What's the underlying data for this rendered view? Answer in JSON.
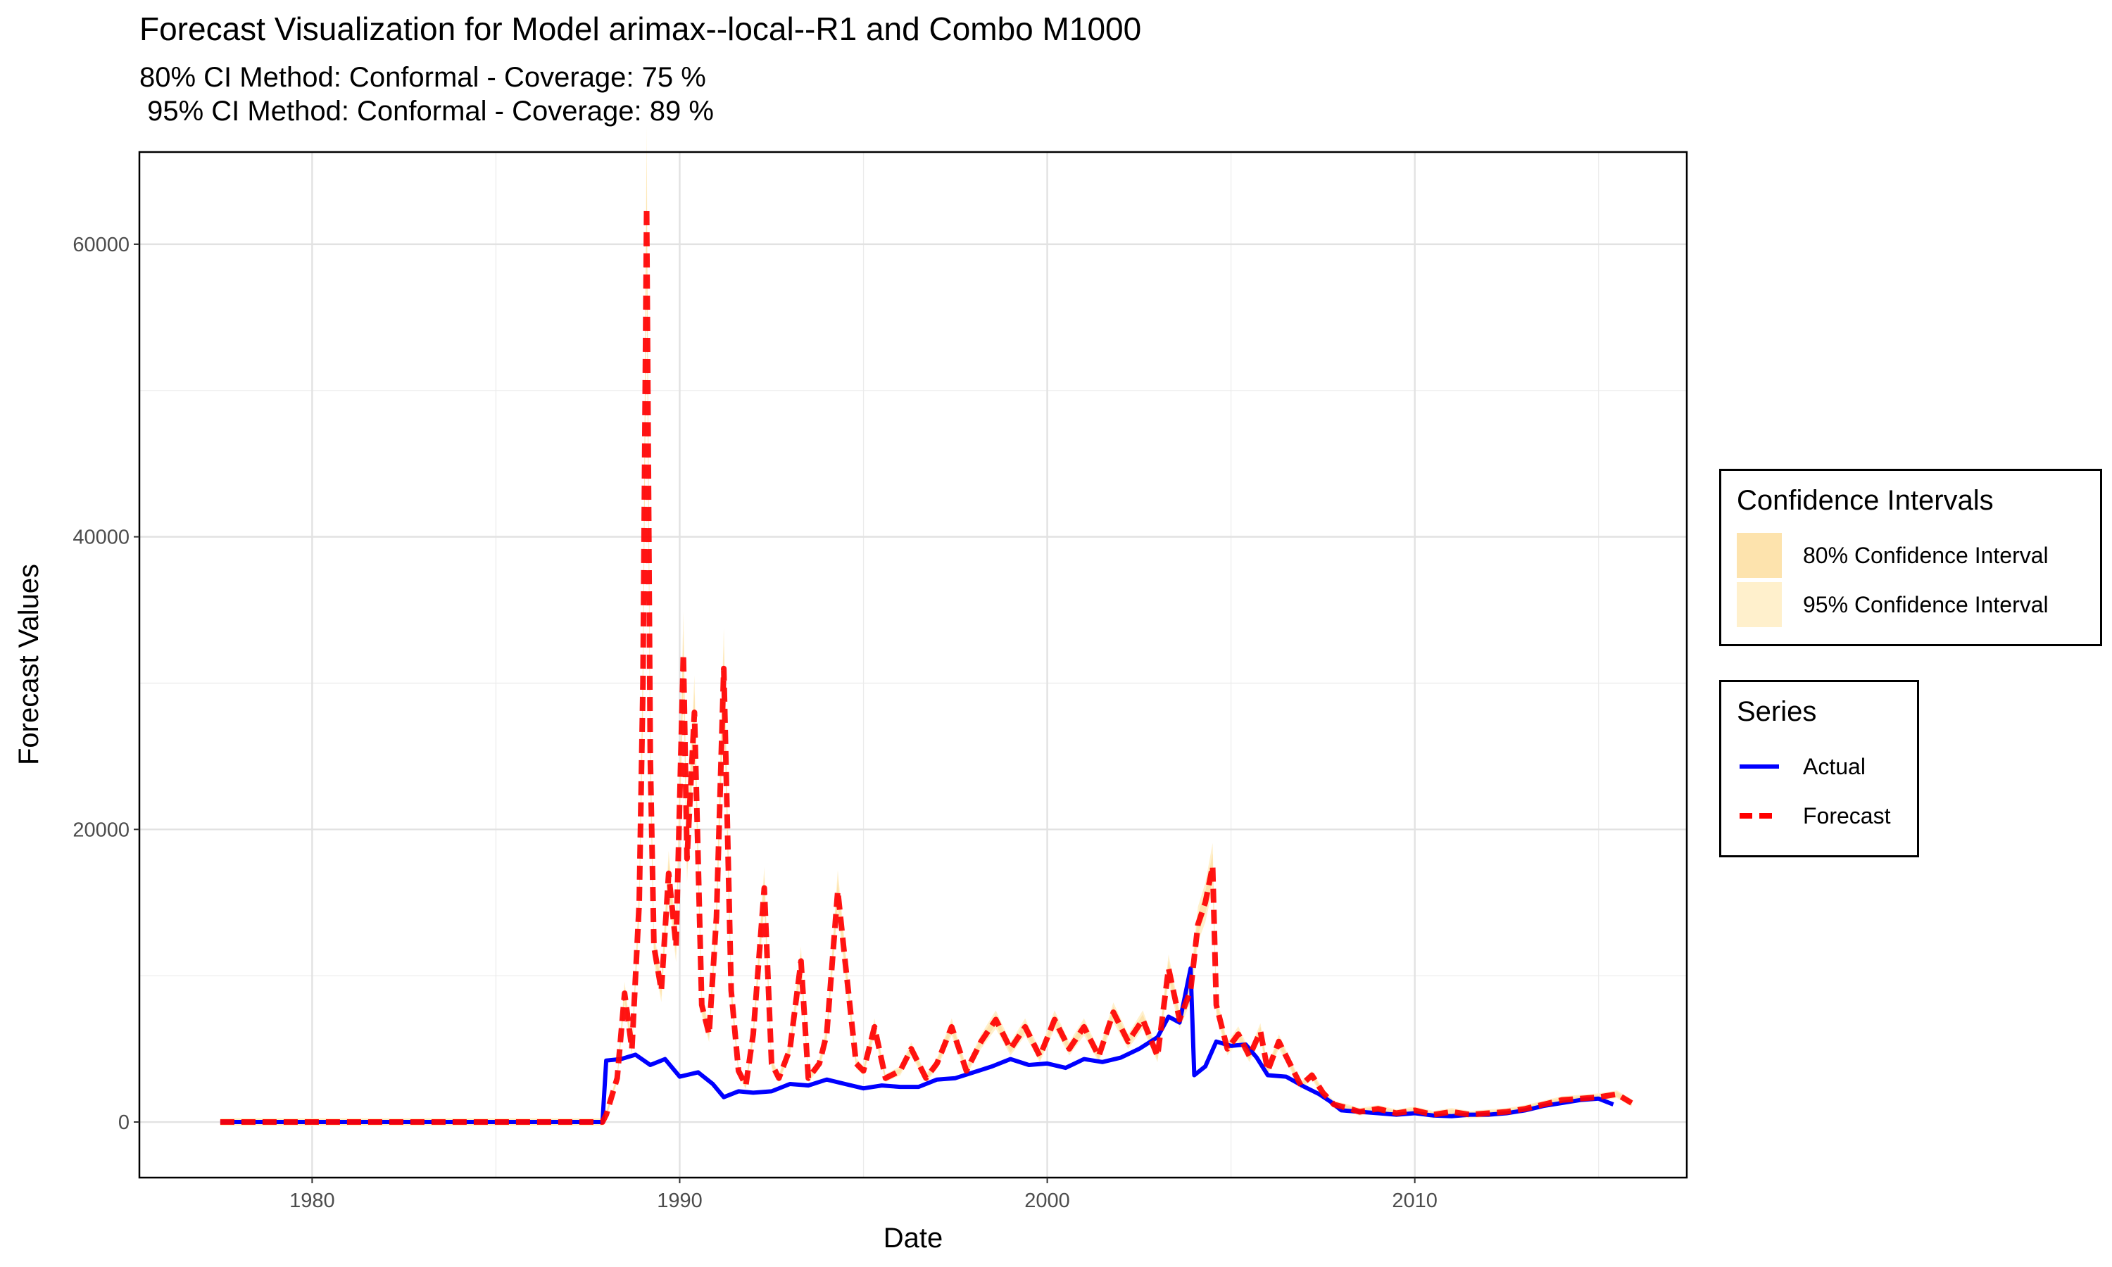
{
  "title": "Forecast Visualization for Model arimax--local--R1 and Combo M1000",
  "subtitle_line1": "80% CI Method: Conformal - Coverage: 75 %",
  "subtitle_line2": " 95% CI Method: Conformal - Coverage: 89 %",
  "legend_ci": {
    "title": "Confidence Intervals",
    "items": [
      {
        "label": "80% Confidence Interval",
        "color": "#fde3ad"
      },
      {
        "label": "95% Confidence Interval",
        "color": "#fff0cc"
      }
    ]
  },
  "legend_series": {
    "title": "Series",
    "items": [
      {
        "label": "Actual",
        "color": "#0000ff",
        "style": "solid"
      },
      {
        "label": "Forecast",
        "color": "#ff0000",
        "style": "dashed"
      }
    ]
  },
  "chart_data": {
    "type": "line",
    "xlabel": "Date",
    "ylabel": "Forecast Values",
    "xlim": [
      1975.3,
      2017.4
    ],
    "ylim": [
      -3800,
      66300
    ],
    "xticks": [
      1980,
      1990,
      2000,
      2010
    ],
    "yticks": [
      0,
      20000,
      40000,
      60000
    ],
    "grid": true,
    "legend_position": "right",
    "series": [
      {
        "name": "Actual",
        "color": "#0000ff",
        "points": [
          [
            1977.5,
            0
          ],
          [
            1987.9,
            0
          ],
          [
            1988.0,
            4200
          ],
          [
            1988.4,
            4300
          ],
          [
            1988.8,
            4600
          ],
          [
            1989.2,
            3900
          ],
          [
            1989.6,
            4300
          ],
          [
            1990.0,
            3100
          ],
          [
            1990.5,
            3400
          ],
          [
            1990.9,
            2600
          ],
          [
            1991.2,
            1700
          ],
          [
            1991.6,
            2100
          ],
          [
            1992.0,
            2000
          ],
          [
            1992.5,
            2100
          ],
          [
            1993.0,
            2600
          ],
          [
            1993.5,
            2500
          ],
          [
            1994.0,
            2900
          ],
          [
            1994.5,
            2600
          ],
          [
            1995.0,
            2300
          ],
          [
            1995.5,
            2500
          ],
          [
            1996.0,
            2400
          ],
          [
            1996.5,
            2400
          ],
          [
            1997.0,
            2900
          ],
          [
            1997.5,
            3000
          ],
          [
            1998.0,
            3400
          ],
          [
            1998.5,
            3800
          ],
          [
            1999.0,
            4300
          ],
          [
            1999.5,
            3900
          ],
          [
            2000.0,
            4000
          ],
          [
            2000.5,
            3700
          ],
          [
            2001.0,
            4300
          ],
          [
            2001.5,
            4100
          ],
          [
            2002.0,
            4400
          ],
          [
            2002.5,
            5000
          ],
          [
            2003.0,
            5800
          ],
          [
            2003.3,
            7200
          ],
          [
            2003.6,
            6800
          ],
          [
            2003.9,
            10500
          ],
          [
            2004.0,
            3200
          ],
          [
            2004.3,
            3800
          ],
          [
            2004.6,
            5500
          ],
          [
            2005.0,
            5200
          ],
          [
            2005.4,
            5300
          ],
          [
            2005.7,
            4400
          ],
          [
            2006.0,
            3200
          ],
          [
            2006.5,
            3100
          ],
          [
            2007.0,
            2400
          ],
          [
            2007.4,
            1900
          ],
          [
            2007.7,
            1400
          ],
          [
            2008.0,
            800
          ],
          [
            2008.5,
            700
          ],
          [
            2009.0,
            600
          ],
          [
            2009.5,
            500
          ],
          [
            2010.0,
            600
          ],
          [
            2010.5,
            450
          ],
          [
            2011.0,
            400
          ],
          [
            2011.5,
            500
          ],
          [
            2012.0,
            500
          ],
          [
            2012.5,
            600
          ],
          [
            2013.0,
            800
          ],
          [
            2013.5,
            1100
          ],
          [
            2014.0,
            1300
          ],
          [
            2014.5,
            1500
          ],
          [
            2015.0,
            1600
          ],
          [
            2015.4,
            1200
          ]
        ]
      },
      {
        "name": "Forecast",
        "color": "#ff0000",
        "points": [
          [
            1977.5,
            0
          ],
          [
            1987.9,
            0
          ],
          [
            1988.0,
            500
          ],
          [
            1988.3,
            3000
          ],
          [
            1988.5,
            8800
          ],
          [
            1988.7,
            5000
          ],
          [
            1988.9,
            15000
          ],
          [
            1989.0,
            30000
          ],
          [
            1989.1,
            62500
          ],
          [
            1989.2,
            25000
          ],
          [
            1989.3,
            12000
          ],
          [
            1989.5,
            9000
          ],
          [
            1989.7,
            17000
          ],
          [
            1989.9,
            12000
          ],
          [
            1990.1,
            32000
          ],
          [
            1990.2,
            18000
          ],
          [
            1990.4,
            28000
          ],
          [
            1990.6,
            8000
          ],
          [
            1990.8,
            6000
          ],
          [
            1991.0,
            14000
          ],
          [
            1991.2,
            31000
          ],
          [
            1991.4,
            9000
          ],
          [
            1991.6,
            3500
          ],
          [
            1991.8,
            2500
          ],
          [
            1992.0,
            6000
          ],
          [
            1992.3,
            16000
          ],
          [
            1992.5,
            4000
          ],
          [
            1992.7,
            3000
          ],
          [
            1993.0,
            5000
          ],
          [
            1993.3,
            11000
          ],
          [
            1993.5,
            3000
          ],
          [
            1993.8,
            4000
          ],
          [
            1994.0,
            6000
          ],
          [
            1994.3,
            15800
          ],
          [
            1994.5,
            11000
          ],
          [
            1994.8,
            4000
          ],
          [
            1995.0,
            3500
          ],
          [
            1995.3,
            6500
          ],
          [
            1995.6,
            3000
          ],
          [
            1996.0,
            3500
          ],
          [
            1996.3,
            5000
          ],
          [
            1996.7,
            3000
          ],
          [
            1997.0,
            4000
          ],
          [
            1997.4,
            6500
          ],
          [
            1997.8,
            3500
          ],
          [
            1998.2,
            5500
          ],
          [
            1998.6,
            7000
          ],
          [
            1999.0,
            5000
          ],
          [
            1999.4,
            6500
          ],
          [
            1999.8,
            4500
          ],
          [
            2000.2,
            7000
          ],
          [
            2000.6,
            5000
          ],
          [
            2001.0,
            6500
          ],
          [
            2001.4,
            4500
          ],
          [
            2001.8,
            7500
          ],
          [
            2002.2,
            5500
          ],
          [
            2002.6,
            7000
          ],
          [
            2003.0,
            4500
          ],
          [
            2003.3,
            10500
          ],
          [
            2003.6,
            7000
          ],
          [
            2003.9,
            9000
          ],
          [
            2004.1,
            13500
          ],
          [
            2004.3,
            15000
          ],
          [
            2004.5,
            17500
          ],
          [
            2004.6,
            8000
          ],
          [
            2004.9,
            5000
          ],
          [
            2005.2,
            6000
          ],
          [
            2005.5,
            4500
          ],
          [
            2005.8,
            6200
          ],
          [
            2006.0,
            3500
          ],
          [
            2006.3,
            5500
          ],
          [
            2006.6,
            4000
          ],
          [
            2006.9,
            2500
          ],
          [
            2007.2,
            3200
          ],
          [
            2007.5,
            2000
          ],
          [
            2007.8,
            1200
          ],
          [
            2008.1,
            1000
          ],
          [
            2008.5,
            700
          ],
          [
            2009.0,
            900
          ],
          [
            2009.5,
            600
          ],
          [
            2010.0,
            800
          ],
          [
            2010.5,
            500
          ],
          [
            2011.0,
            700
          ],
          [
            2011.5,
            500
          ],
          [
            2012.0,
            600
          ],
          [
            2012.5,
            700
          ],
          [
            2013.0,
            900
          ],
          [
            2013.5,
            1200
          ],
          [
            2014.0,
            1500
          ],
          [
            2014.5,
            1600
          ],
          [
            2015.0,
            1700
          ],
          [
            2015.5,
            1900
          ],
          [
            2015.9,
            1300
          ]
        ]
      }
    ]
  }
}
